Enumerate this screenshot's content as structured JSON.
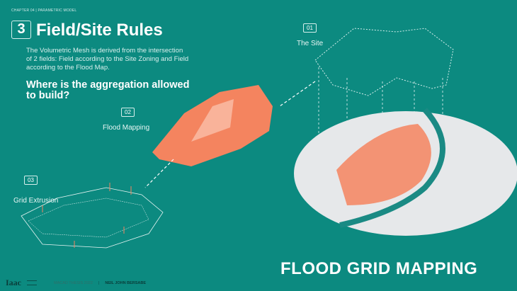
{
  "chapter": "CHAPTER 04 | PARAMETRIC MODEL",
  "section_number": "3",
  "title": "Field/Site Rules",
  "description": "The Volumetric Mesh is derived from the intersection of 2 fields: Field according to the Site Zoning and Field according to the Flood Map.",
  "question": "Where is the aggregation allowed to build?",
  "steps": [
    {
      "num": "01",
      "label": "The Site"
    },
    {
      "num": "02",
      "label": "Flood Mapping"
    },
    {
      "num": "03",
      "label": "Grid Extrusion"
    }
  ],
  "headline": "FLOOD GRID MAPPING",
  "footer": {
    "logo": "Iaac",
    "thesis": "MACAD THESIS 2022",
    "separator": "|",
    "author": "NEIL JOHN BERSABE"
  },
  "colors": {
    "background": "#0c8a80",
    "flood": "#f4845f",
    "model": "#e6e8ea",
    "river": "#1a8a84"
  }
}
